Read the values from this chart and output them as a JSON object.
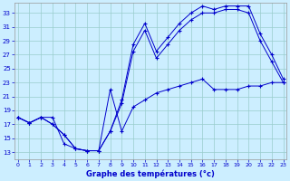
{
  "xlabel": "Graphe des températures (°c)",
  "bg_color": "#cceeff",
  "line_color": "#0000cc",
  "grid_color": "#99cccc",
  "yticks": [
    13,
    15,
    17,
    19,
    21,
    23,
    25,
    27,
    29,
    31,
    33
  ],
  "xticks": [
    0,
    1,
    2,
    3,
    4,
    5,
    6,
    7,
    8,
    9,
    10,
    11,
    12,
    13,
    14,
    15,
    16,
    17,
    18,
    19,
    20,
    21,
    22,
    23
  ],
  "xlim": [
    -0.3,
    23.3
  ],
  "ylim": [
    12.0,
    34.5
  ],
  "line1_x": [
    0,
    1,
    2,
    3,
    4,
    5,
    6,
    7,
    8,
    9,
    10,
    11,
    12,
    13,
    14,
    15,
    16,
    17,
    18,
    19,
    20,
    21,
    22,
    23
  ],
  "line1_y": [
    18.0,
    17.2,
    18.0,
    18.0,
    14.2,
    13.5,
    13.2,
    13.2,
    22.0,
    16.0,
    19.5,
    20.5,
    21.5,
    22.0,
    22.5,
    23.0,
    23.5,
    22.0,
    22.0,
    22.0,
    22.5,
    22.5,
    23.0,
    23.0
  ],
  "line2_x": [
    0,
    1,
    2,
    3,
    4,
    5,
    6,
    7,
    8,
    9,
    10,
    11,
    12,
    13,
    14,
    15,
    16,
    17,
    18,
    19,
    20,
    21,
    22,
    23
  ],
  "line2_y": [
    18.0,
    17.2,
    18.0,
    17.0,
    15.5,
    13.5,
    13.2,
    13.2,
    16.0,
    20.0,
    27.5,
    30.5,
    26.5,
    28.5,
    30.5,
    32.0,
    33.0,
    33.0,
    33.5,
    33.5,
    33.0,
    29.0,
    26.0,
    23.0
  ],
  "line3_x": [
    0,
    1,
    2,
    3,
    4,
    5,
    6,
    7,
    8,
    9,
    10,
    11,
    12,
    13,
    14,
    15,
    16,
    17,
    18,
    19,
    20,
    21,
    22,
    23
  ],
  "line3_y": [
    18.0,
    17.2,
    18.0,
    17.0,
    15.5,
    13.5,
    13.2,
    13.2,
    16.0,
    20.5,
    28.5,
    31.5,
    27.5,
    29.5,
    31.5,
    33.0,
    34.0,
    33.5,
    34.0,
    34.0,
    34.0,
    30.0,
    27.0,
    23.5
  ]
}
